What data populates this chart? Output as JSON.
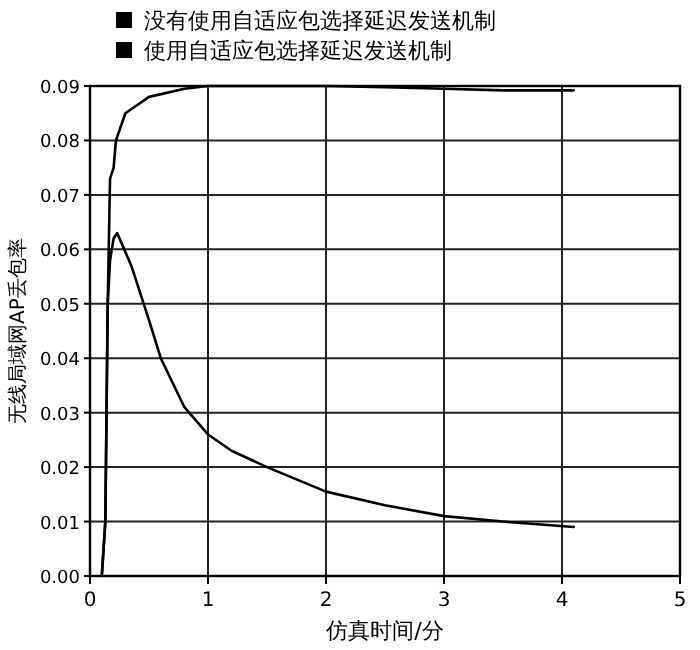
{
  "chart_data": {
    "type": "line",
    "xlabel": "仿真时间/分",
    "ylabel": "无线局域网AP丢包率",
    "xlim": [
      0,
      5
    ],
    "xticks": [
      0,
      1,
      2,
      3,
      4,
      5
    ],
    "ylim": [
      0,
      0.09
    ],
    "yticks": [
      {
        "value": 0,
        "label": "0.00"
      },
      {
        "value": 0.01,
        "label": "0.01"
      },
      {
        "value": 0.02,
        "label": "0.02"
      },
      {
        "value": 0.03,
        "label": "0.03"
      },
      {
        "value": 0.04,
        "label": "0.04"
      },
      {
        "value": 0.05,
        "label": "0.05"
      },
      {
        "value": 0.06,
        "label": "0.06"
      },
      {
        "value": 0.07,
        "label": "0.07"
      },
      {
        "value": 0.08,
        "label": "0.08"
      },
      {
        "value": 0.09,
        "label": "0.09"
      }
    ],
    "grid": true,
    "legend": "top",
    "series": [
      {
        "name": "没有使用自适应包选择延迟发送机制",
        "color": "#000000",
        "x": [
          0.1,
          0.13,
          0.15,
          0.17,
          0.2,
          0.22,
          0.3,
          0.5,
          0.8,
          1,
          2,
          2.5,
          3,
          3.5,
          4.1
        ],
        "values": [
          0,
          0.01,
          0.05,
          0.073,
          0.075,
          0.08,
          0.085,
          0.088,
          0.0895,
          0.09,
          0.09,
          0.0898,
          0.0895,
          0.0892,
          0.0892
        ]
      },
      {
        "name": "使用自适应包选择延迟发送机制",
        "color": "#000000",
        "x": [
          0.1,
          0.13,
          0.15,
          0.17,
          0.2,
          0.23,
          0.27,
          0.35,
          0.5,
          0.6,
          0.8,
          1,
          1.2,
          1.5,
          2,
          2.5,
          3,
          3.5,
          4.1
        ],
        "values": [
          0,
          0.01,
          0.05,
          0.058,
          0.062,
          0.063,
          0.061,
          0.057,
          0.047,
          0.04,
          0.031,
          0.026,
          0.023,
          0.02,
          0.0155,
          0.013,
          0.011,
          0.01,
          0.009
        ]
      }
    ]
  }
}
